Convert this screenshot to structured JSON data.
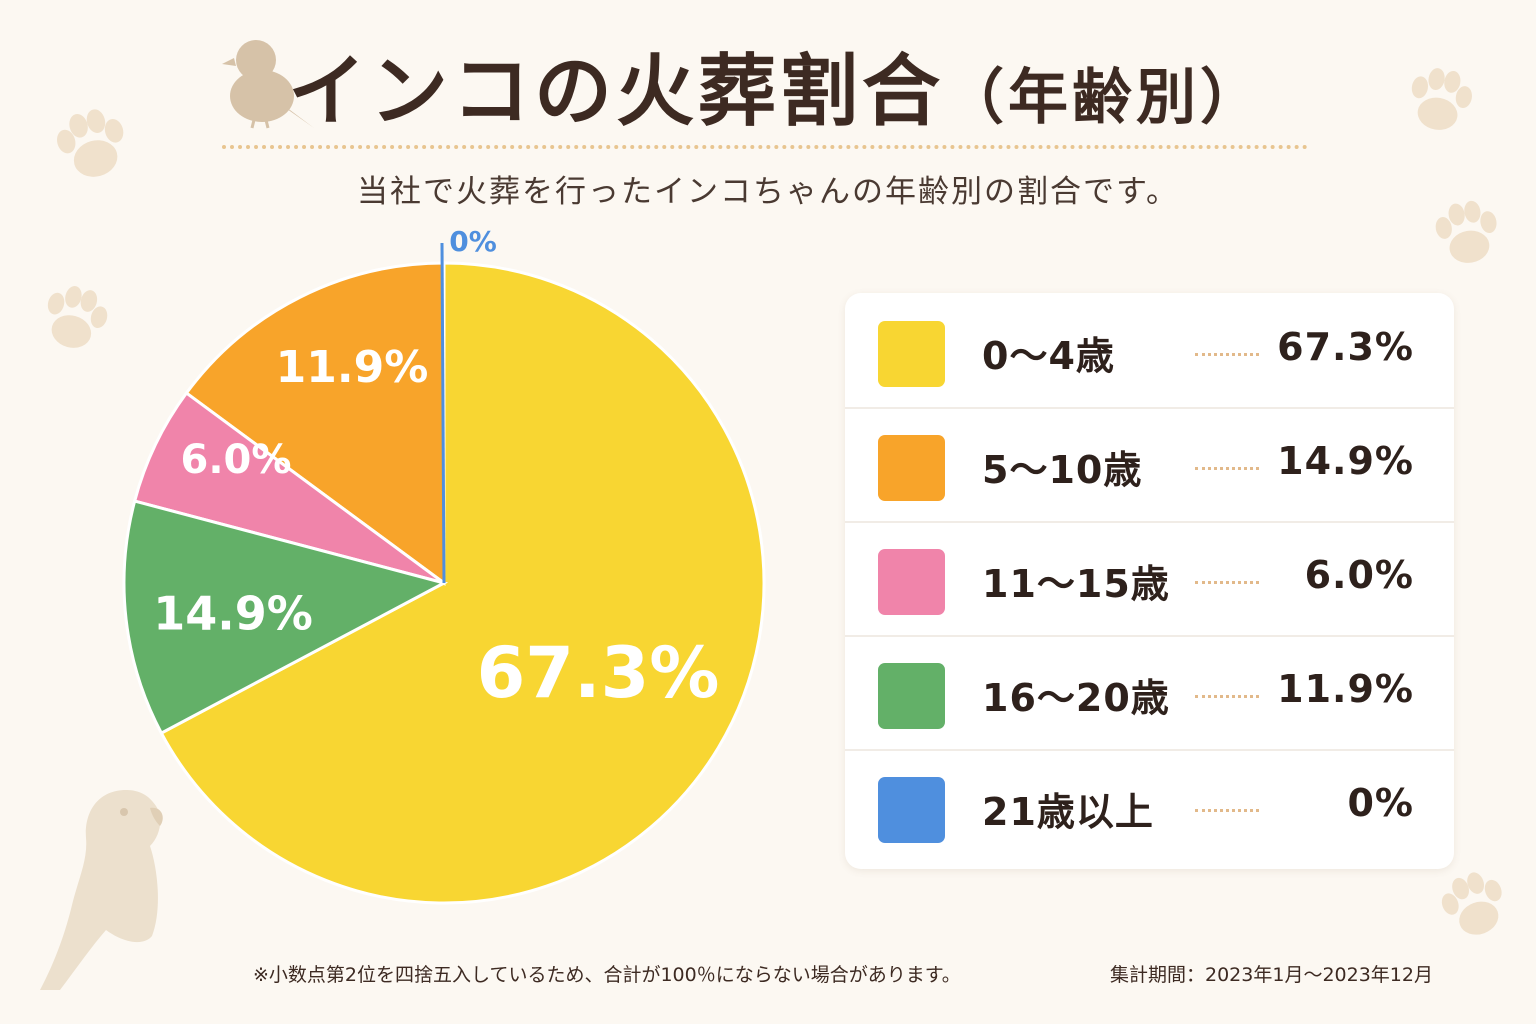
{
  "title": "インコの火葬割合",
  "title_suffix": "（年齢別）",
  "subtitle": "当社で火葬を行ったインコちゃんの年齢別の割合です。",
  "footnote": "※小数点第2位を四捨五入しているため、合計が100％にならない場合があります。",
  "period": "集計期間：2023年1月～2023年12月",
  "legend": {
    "rows": [
      {
        "label": "0～4歳",
        "value": "67.3%",
        "color": "#f8d632"
      },
      {
        "label": "5～10歳",
        "value": "14.9%",
        "color": "#f8a42a"
      },
      {
        "label": "11～15歳",
        "value": "6.0%",
        "color": "#f084aa"
      },
      {
        "label": "16～20歳",
        "value": "11.9%",
        "color": "#63b068"
      },
      {
        "label": "21歳以上",
        "value": "0%",
        "color": "#4f8fde"
      }
    ]
  },
  "chart_data": {
    "type": "pie",
    "title": "インコの火葬割合（年齢別）",
    "categories": [
      "0～4歳",
      "5～10歳",
      "11～15歳",
      "16～20歳",
      "21歳以上"
    ],
    "values": [
      67.3,
      14.9,
      6.0,
      11.9,
      0
    ],
    "labels": [
      "67.3%",
      "14.9%",
      "6.0%",
      "11.9%",
      "0%"
    ],
    "colors": [
      "#f8d632",
      "#f8a42a",
      "#f084aa",
      "#63b068",
      "#4f8fde"
    ],
    "label_colors": [
      "#ffffff",
      "#ffffff",
      "#ffffff",
      "#ffffff",
      "#4f8fde"
    ],
    "legend_position": "right"
  },
  "icons": [
    "bird-icon",
    "parrot-icon",
    "paw-icon"
  ]
}
